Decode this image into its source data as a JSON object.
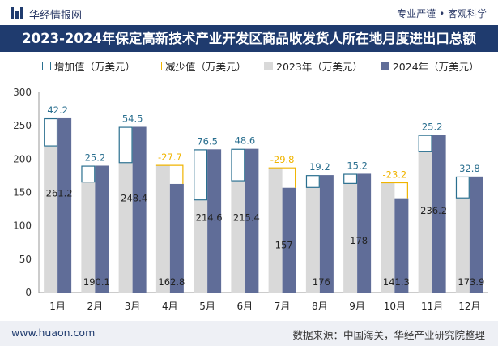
{
  "header": {
    "brand": "华经情报网",
    "slogan": "专业严谨 • 客观科学"
  },
  "title": "2023-2024年保定高新技术产业开发区商品收发货人所在地月度进出口总额",
  "legend": {
    "increase": "增加值（万美元）",
    "decrease": "减少值（万美元）",
    "y2023": "2023年（万美元）",
    "y2024": "2024年（万美元）"
  },
  "colors": {
    "bar2023": "#d9d9d9",
    "bar2024": "#606d98",
    "increase": "#2a6f8f",
    "decrease": "#f0b400",
    "title_bg": "#1f3b6e"
  },
  "chart_data": {
    "type": "bar",
    "categories": [
      "1月",
      "2月",
      "3月",
      "4月",
      "5月",
      "6月",
      "7月",
      "8月",
      "9月",
      "10月",
      "11月",
      "12月"
    ],
    "series": [
      {
        "name": "2023年（万美元）",
        "values": [
          219.0,
          164.9,
          193.9,
          190.5,
          138.1,
          166.8,
          186.8,
          156.8,
          162.8,
          164.5,
          211.0,
          141.1
        ]
      },
      {
        "name": "2024年（万美元）",
        "values": [
          261.2,
          190.1,
          248.4,
          162.8,
          214.6,
          215.4,
          157,
          176,
          178,
          141.3,
          236.2,
          173.9
        ]
      }
    ],
    "diff_values": [
      42.2,
      25.2,
      54.5,
      -27.7,
      76.5,
      48.6,
      -29.8,
      19.2,
      15.2,
      -23.2,
      25.2,
      32.8
    ],
    "diff_labels": [
      "42.2",
      "25.2",
      "54.5",
      "-27.7",
      "76.5",
      "48.6",
      "-29.8",
      "19.2",
      "15.2",
      "-23.2",
      "25.2",
      "32.8"
    ],
    "value_labels_2024": [
      "261.2",
      "190.1",
      "248.4",
      "162.8",
      "214.6",
      "215.4",
      "157",
      "176",
      "178",
      "141.3",
      "236.2",
      "173.9"
    ],
    "ylim": [
      0,
      300
    ],
    "yticks": [
      "0",
      "50",
      "100",
      "150",
      "200",
      "250",
      "300"
    ],
    "xlabel": "",
    "ylabel": ""
  },
  "footer": {
    "site": "www.huaon.com",
    "source": "数据来源：中国海关，华经产业研究院整理"
  }
}
